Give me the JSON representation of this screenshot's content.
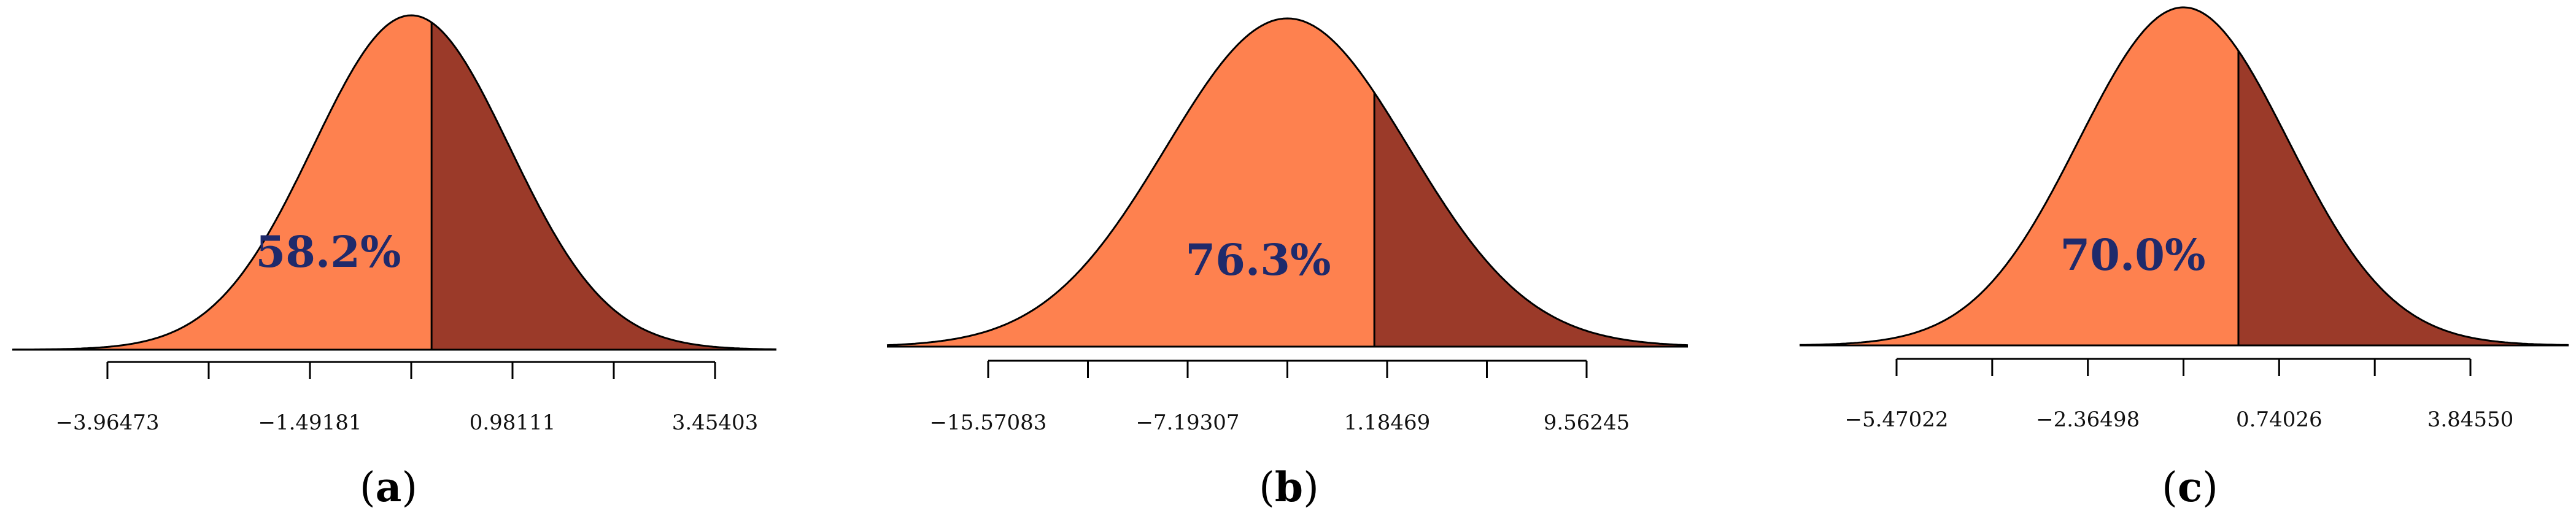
{
  "colors": {
    "left_fill": "#fe814f",
    "right_fill": "#9b3a29",
    "curve": "#000000",
    "percent_text": "#1f2a6b"
  },
  "chart_data": [
    {
      "type": "area",
      "panel_label": "a",
      "shaded_percent": "58.2%",
      "shaded_fraction": 0.582,
      "distribution": {
        "mean": -0.25535,
        "sd": 1.2
      },
      "axis": {
        "xlim": [
          -5.5,
          4.5
        ],
        "tick_min": -3.96473,
        "tick_step": 1.23646,
        "tick_count": 7
      },
      "tick_labels": [
        {
          "x": -3.96473,
          "label": "−3.96473"
        },
        {
          "x": -1.49181,
          "label": "−1.49181"
        },
        {
          "x": 0.98111,
          "label": "0.98111"
        },
        {
          "x": 3.45403,
          "label": "3.45403"
        }
      ]
    },
    {
      "type": "area",
      "panel_label": "b",
      "shaded_percent": "76.3%",
      "shaded_fraction": 0.763,
      "distribution": {
        "mean": -3.004,
        "sd": 5.1
      },
      "axis": {
        "xlim": [
          -18.0,
          12.0
        ],
        "tick_min": -15.57083,
        "tick_step": 4.18888,
        "tick_count": 7
      },
      "tick_labels": [
        {
          "x": -15.57083,
          "label": "−15.57083"
        },
        {
          "x": -7.19307,
          "label": "−7.19307"
        },
        {
          "x": 1.18469,
          "label": "1.18469"
        },
        {
          "x": 9.56245,
          "label": "9.56245"
        }
      ]
    },
    {
      "type": "area",
      "panel_label": "c",
      "shaded_percent": "70.0%",
      "shaded_fraction": 0.7,
      "distribution": {
        "mean": -0.81236,
        "sd": 1.7
      },
      "axis": {
        "xlim": [
          -7.0,
          5.3
        ],
        "tick_min": -5.47022,
        "tick_step": 1.55262,
        "tick_count": 7
      },
      "tick_labels": [
        {
          "x": -5.47022,
          "label": "−5.47022"
        },
        {
          "x": -2.36498,
          "label": "−2.36498"
        },
        {
          "x": 0.74026,
          "label": "0.74026"
        },
        {
          "x": 3.8455,
          "label": "3.84550"
        }
      ]
    }
  ]
}
